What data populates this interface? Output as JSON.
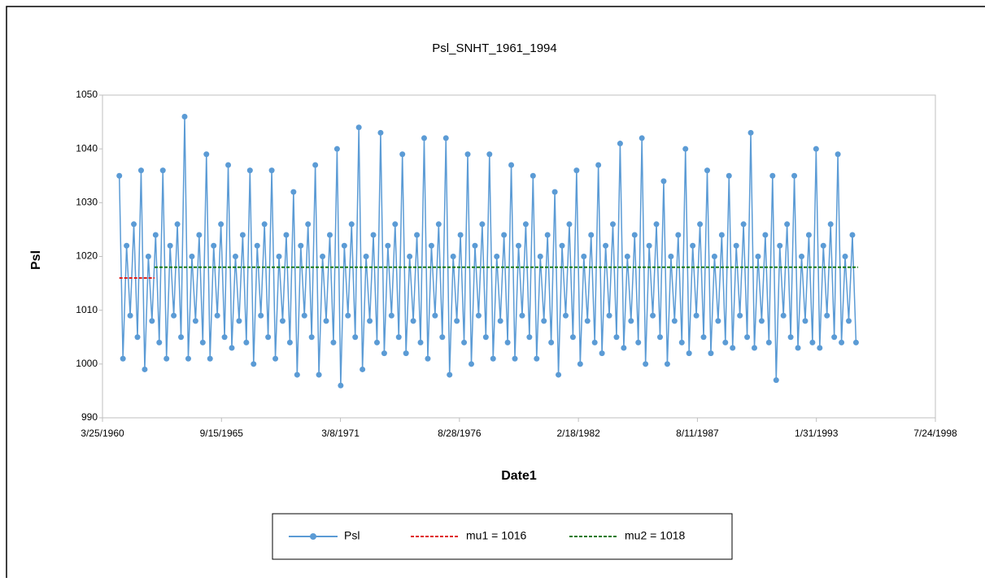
{
  "chart_data": {
    "type": "line",
    "title": "Psl_SNHT_1961_1994",
    "x_label": "Date1",
    "y_label": "Psl",
    "xlim": [
      21999,
      35999
    ],
    "xticks": [
      {
        "value": 21999,
        "label": "3/25/1960"
      },
      {
        "value": 23999,
        "label": "9/15/1965"
      },
      {
        "value": 25999,
        "label": "3/8/1971"
      },
      {
        "value": 27999,
        "label": "8/28/1976"
      },
      {
        "value": 29999,
        "label": "2/18/1982"
      },
      {
        "value": 31999,
        "label": "8/11/1987"
      },
      {
        "value": 33999,
        "label": "1/31/1993"
      },
      {
        "value": 35999,
        "label": "7/24/1998"
      }
    ],
    "ylim": [
      990,
      1050
    ],
    "yticks": [
      990,
      1000,
      1010,
      1020,
      1030,
      1040,
      1050
    ],
    "grid": false,
    "legend": "bottom",
    "series": [
      {
        "name": "Psl",
        "color": "#5b9bd5",
        "line_style": "solid",
        "marker": "circle",
        "x": [
          22282,
          22343,
          22404,
          22465,
          22526,
          22587,
          22648,
          22709,
          22770,
          22831,
          22892,
          22953,
          23014,
          23075,
          23136,
          23197,
          23258,
          23319,
          23380,
          23441,
          23502,
          23563,
          23624,
          23685,
          23746,
          23807,
          23868,
          23929,
          23990,
          24051,
          24112,
          24173,
          24234,
          24295,
          24356,
          24417,
          24478,
          24539,
          24600,
          24661,
          24722,
          24783,
          24844,
          24905,
          24966,
          25027,
          25088,
          25149,
          25210,
          25271,
          25332,
          25393,
          25454,
          25515,
          25576,
          25637,
          25698,
          25759,
          25820,
          25881,
          25942,
          26003,
          26064,
          26125,
          26186,
          26247,
          26308,
          26369,
          26430,
          26491,
          26552,
          26613,
          26674,
          26735,
          26796,
          26857,
          26918,
          26979,
          27040,
          27101,
          27162,
          27223,
          27284,
          27345,
          27406,
          27467,
          27528,
          27589,
          27650,
          27711,
          27772,
          27833,
          27894,
          27955,
          28016,
          28077,
          28138,
          28199,
          28260,
          28321,
          28382,
          28443,
          28504,
          28565,
          28626,
          28687,
          28748,
          28809,
          28870,
          28931,
          28992,
          29053,
          29114,
          29175,
          29236,
          29297,
          29358,
          29419,
          29480,
          29541,
          29602,
          29663,
          29724,
          29785,
          29846,
          29907,
          29968,
          30029,
          30090,
          30151,
          30212,
          30273,
          30334,
          30395,
          30456,
          30517,
          30578,
          30639,
          30700,
          30761,
          30822,
          30883,
          30944,
          31005,
          31066,
          31127,
          31188,
          31249,
          31310,
          31371,
          31432,
          31493,
          31554,
          31615,
          31676,
          31737,
          31798,
          31859,
          31920,
          31981,
          32042,
          32103,
          32164,
          32225,
          32286,
          32347,
          32408,
          32469,
          32530,
          32591,
          32652,
          32713,
          32774,
          32835,
          32896,
          32957,
          33018,
          33079,
          33140,
          33201,
          33262,
          33323,
          33384,
          33445,
          33506,
          33567,
          33628,
          33689,
          33750,
          33811,
          33872,
          33933,
          33994,
          34055,
          34116,
          34177,
          34238,
          34299,
          34360,
          34421,
          34482,
          34543,
          34604,
          34665
        ],
        "values": [
          1035,
          1001,
          1022,
          1009,
          1026,
          1005,
          1036,
          999,
          1020,
          1008,
          1024,
          1004,
          1036,
          1001,
          1022,
          1009,
          1026,
          1005,
          1046,
          1001,
          1020,
          1008,
          1024,
          1004,
          1039,
          1001,
          1022,
          1009,
          1026,
          1005,
          1037,
          1003,
          1020,
          1008,
          1024,
          1004,
          1036,
          1000,
          1022,
          1009,
          1026,
          1005,
          1036,
          1001,
          1020,
          1008,
          1024,
          1004,
          1032,
          998,
          1022,
          1009,
          1026,
          1005,
          1037,
          998,
          1020,
          1008,
          1024,
          1004,
          1040,
          996,
          1022,
          1009,
          1026,
          1005,
          1044,
          999,
          1020,
          1008,
          1024,
          1004,
          1043,
          1002,
          1022,
          1009,
          1026,
          1005,
          1039,
          1002,
          1020,
          1008,
          1024,
          1004,
          1042,
          1001,
          1022,
          1009,
          1026,
          1005,
          1042,
          998,
          1020,
          1008,
          1024,
          1004,
          1039,
          1000,
          1022,
          1009,
          1026,
          1005,
          1039,
          1001,
          1020,
          1008,
          1024,
          1004,
          1037,
          1001,
          1022,
          1009,
          1026,
          1005,
          1035,
          1001,
          1020,
          1008,
          1024,
          1004,
          1032,
          998,
          1022,
          1009,
          1026,
          1005,
          1036,
          1000,
          1020,
          1008,
          1024,
          1004,
          1037,
          1002,
          1022,
          1009,
          1026,
          1005,
          1041,
          1003,
          1020,
          1008,
          1024,
          1004,
          1042,
          1000,
          1022,
          1009,
          1026,
          1005,
          1034,
          1000,
          1020,
          1008,
          1024,
          1004,
          1040,
          1002,
          1022,
          1009,
          1026,
          1005,
          1036,
          1002,
          1020,
          1008,
          1024,
          1004,
          1035,
          1003,
          1022,
          1009,
          1026,
          1005,
          1043,
          1003,
          1020,
          1008,
          1024,
          1004,
          1035,
          997,
          1022,
          1009,
          1026,
          1005,
          1035,
          1003,
          1020,
          1008,
          1024,
          1004,
          1040,
          1003,
          1022,
          1009,
          1026,
          1005,
          1039,
          1004,
          1020,
          1008,
          1024,
          1004
        ]
      },
      {
        "name": "mu1 = 1016",
        "color": "#e0201c",
        "line_style": "dashed",
        "marker": "none",
        "x": [
          22282,
          22874
        ],
        "values": [
          1016,
          1016
        ]
      },
      {
        "name": "mu2 = 1018",
        "color": "#1a7a1a",
        "line_style": "dashed",
        "marker": "none",
        "x": [
          22874,
          34699
        ],
        "values": [
          1018,
          1018
        ]
      }
    ]
  }
}
